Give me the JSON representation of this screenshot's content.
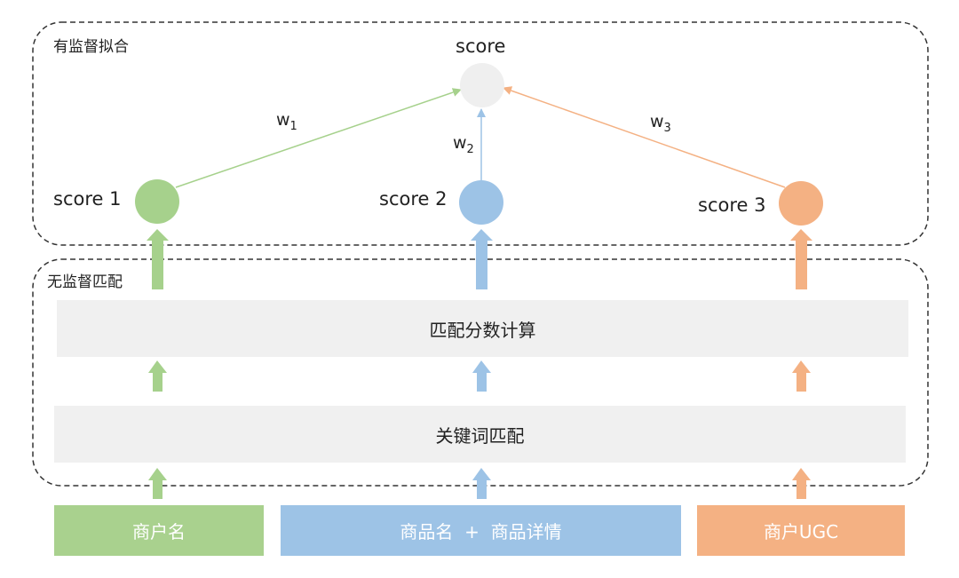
{
  "groups": {
    "supervised": "有监督拟合",
    "unsupervised": "无监督匹配"
  },
  "top_node": {
    "label": "score"
  },
  "score_nodes": [
    {
      "label": "score 1",
      "color": "#a6d18c"
    },
    {
      "label": "score 2",
      "color": "#9dc3e6"
    },
    {
      "label": "score 3",
      "color": "#f4b183"
    }
  ],
  "weights": [
    {
      "base": "w",
      "sub": "1"
    },
    {
      "base": "w",
      "sub": "2"
    },
    {
      "base": "w",
      "sub": "3"
    }
  ],
  "stages": {
    "score_calc": "匹配分数计算",
    "keyword_match": "关键词匹配"
  },
  "sources": [
    {
      "label": "商户名",
      "color": "#a9d18e"
    },
    {
      "label": "商品名  +  商品详情",
      "color": "#9dc3e6"
    },
    {
      "label": "商户UGC",
      "color": "#f4b183"
    }
  ],
  "colors": {
    "top_node": "#efefef",
    "band": "#f0f0f0",
    "dashed_border": "#333333"
  }
}
